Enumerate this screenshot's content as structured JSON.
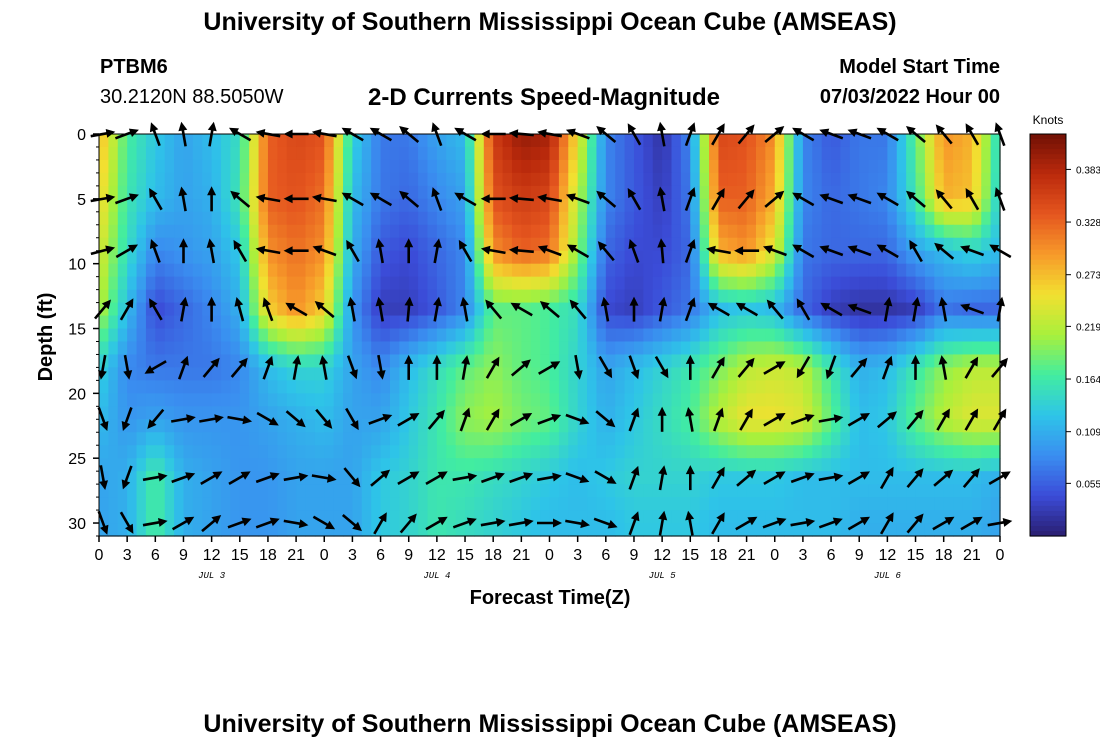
{
  "header": {
    "title": "University of Southern Mississippi Ocean Cube (AMSEAS)",
    "station_id": "PTBM6",
    "station_coords": "30.2120N  88.5050W",
    "subtitle": "2-D Currents Speed-Magnitude",
    "model_start_label": "Model Start Time",
    "model_start_value": "07/03/2022 Hour 00"
  },
  "footer": {
    "title": "University of Southern Mississippi Ocean Cube (AMSEAS)"
  },
  "chart_data": {
    "type": "heatmap",
    "title": "2-D Currents Speed-Magnitude",
    "xlabel": "Forecast Time(Z)",
    "ylabel": "Depth (ft)",
    "x_tick_labels": [
      "0",
      "3",
      "6",
      "9",
      "12",
      "15",
      "18",
      "21",
      "0",
      "3",
      "6",
      "9",
      "12",
      "15",
      "18",
      "21",
      "0",
      "3",
      "6",
      "9",
      "12",
      "15",
      "18",
      "21",
      "0",
      "3",
      "6",
      "9",
      "12",
      "15",
      "18",
      "21",
      "0"
    ],
    "x_hours_range": [
      0,
      96
    ],
    "date_labels": [
      {
        "label": "JUL 3",
        "hour": 12
      },
      {
        "label": "JUL 4",
        "hour": 36
      },
      {
        "label": "JUL 5",
        "hour": 60
      },
      {
        "label": "JUL 6",
        "hour": 84
      }
    ],
    "y_ticks": [
      0,
      5,
      10,
      15,
      20,
      25,
      30
    ],
    "ylim": [
      0,
      31
    ],
    "y_inverted": true,
    "colorbar": {
      "title": "Knots",
      "ticks": [
        0.383,
        0.328,
        0.273,
        0.219,
        0.164,
        0.109,
        0.055
      ],
      "range": [
        0.0,
        0.42
      ],
      "colors": [
        "#2a1e70",
        "#3b4cd8",
        "#3a8ef0",
        "#2ec4e8",
        "#42eda0",
        "#a8f03c",
        "#f2e030",
        "#f79a2a",
        "#e5561f",
        "#bb2a0c",
        "#701005"
      ]
    },
    "depth_levels_ft": [
      0,
      5,
      9,
      13.5,
      18,
      22,
      26.5,
      30
    ],
    "speed_knots": {
      "hours": [
        0,
        3,
        6,
        9,
        12,
        15,
        18,
        21,
        24,
        27,
        30,
        33,
        36,
        39,
        42,
        45,
        48,
        51,
        54,
        57,
        60,
        63,
        66,
        69,
        72,
        75,
        78,
        81,
        84,
        87,
        90,
        93,
        96
      ],
      "d0": [
        0.28,
        0.17,
        0.13,
        0.1,
        0.12,
        0.15,
        0.33,
        0.35,
        0.34,
        0.14,
        0.07,
        0.07,
        0.1,
        0.12,
        0.36,
        0.4,
        0.39,
        0.25,
        0.08,
        0.05,
        0.02,
        0.08,
        0.35,
        0.34,
        0.3,
        0.08,
        0.05,
        0.07,
        0.07,
        0.18,
        0.3,
        0.28,
        0.14
      ],
      "d5": [
        0.26,
        0.16,
        0.12,
        0.1,
        0.11,
        0.16,
        0.33,
        0.34,
        0.32,
        0.12,
        0.07,
        0.06,
        0.08,
        0.1,
        0.34,
        0.36,
        0.35,
        0.22,
        0.08,
        0.05,
        0.03,
        0.07,
        0.33,
        0.33,
        0.28,
        0.08,
        0.06,
        0.07,
        0.08,
        0.16,
        0.28,
        0.27,
        0.13
      ],
      "d9": [
        0.24,
        0.15,
        0.08,
        0.09,
        0.1,
        0.13,
        0.3,
        0.32,
        0.3,
        0.11,
        0.05,
        0.04,
        0.06,
        0.08,
        0.3,
        0.33,
        0.32,
        0.2,
        0.06,
        0.04,
        0.04,
        0.06,
        0.28,
        0.3,
        0.24,
        0.07,
        0.06,
        0.06,
        0.06,
        0.1,
        0.12,
        0.14,
        0.12
      ],
      "d13.5": [
        0.22,
        0.12,
        0.04,
        0.06,
        0.08,
        0.11,
        0.26,
        0.3,
        0.26,
        0.09,
        0.03,
        0.03,
        0.05,
        0.08,
        0.18,
        0.18,
        0.17,
        0.15,
        0.04,
        0.03,
        0.05,
        0.07,
        0.12,
        0.13,
        0.12,
        0.06,
        0.03,
        0.02,
        0.02,
        0.03,
        0.07,
        0.06,
        0.06
      ],
      "d18": [
        0.14,
        0.08,
        0.07,
        0.07,
        0.07,
        0.08,
        0.12,
        0.14,
        0.14,
        0.1,
        0.08,
        0.12,
        0.15,
        0.18,
        0.2,
        0.18,
        0.17,
        0.14,
        0.1,
        0.12,
        0.14,
        0.16,
        0.19,
        0.22,
        0.23,
        0.22,
        0.16,
        0.11,
        0.12,
        0.16,
        0.2,
        0.22,
        0.22
      ],
      "d22": [
        0.12,
        0.09,
        0.1,
        0.09,
        0.09,
        0.09,
        0.1,
        0.11,
        0.12,
        0.1,
        0.1,
        0.13,
        0.16,
        0.2,
        0.21,
        0.19,
        0.18,
        0.14,
        0.11,
        0.13,
        0.15,
        0.17,
        0.22,
        0.25,
        0.25,
        0.24,
        0.18,
        0.12,
        0.13,
        0.18,
        0.22,
        0.24,
        0.24
      ],
      "d26.5": [
        0.1,
        0.11,
        0.17,
        0.11,
        0.1,
        0.09,
        0.09,
        0.1,
        0.1,
        0.1,
        0.13,
        0.14,
        0.16,
        0.16,
        0.15,
        0.14,
        0.13,
        0.12,
        0.13,
        0.14,
        0.14,
        0.14,
        0.13,
        0.13,
        0.13,
        0.12,
        0.12,
        0.12,
        0.12,
        0.12,
        0.12,
        0.12,
        0.11
      ],
      "d30": [
        0.1,
        0.11,
        0.17,
        0.11,
        0.1,
        0.09,
        0.09,
        0.1,
        0.1,
        0.1,
        0.13,
        0.14,
        0.16,
        0.15,
        0.14,
        0.13,
        0.12,
        0.12,
        0.12,
        0.13,
        0.13,
        0.13,
        0.12,
        0.12,
        0.12,
        0.12,
        0.12,
        0.11,
        0.11,
        0.11,
        0.11,
        0.11,
        0.1
      ]
    },
    "arrow_direction_deg": {
      "d0": [
        80,
        70,
        340,
        350,
        10,
        300,
        280,
        270,
        280,
        300,
        300,
        310,
        340,
        300,
        270,
        275,
        280,
        290,
        310,
        330,
        350,
        20,
        30,
        40,
        50,
        300,
        290,
        290,
        300,
        310,
        320,
        330,
        340
      ],
      "d5": [
        80,
        70,
        330,
        350,
        0,
        310,
        280,
        270,
        280,
        300,
        300,
        310,
        340,
        300,
        270,
        275,
        280,
        290,
        310,
        330,
        350,
        20,
        30,
        40,
        50,
        300,
        290,
        290,
        300,
        310,
        320,
        330,
        340
      ],
      "d9": [
        75,
        60,
        340,
        0,
        350,
        330,
        280,
        270,
        290,
        330,
        350,
        0,
        10,
        330,
        280,
        275,
        290,
        300,
        320,
        340,
        355,
        20,
        280,
        270,
        290,
        300,
        290,
        290,
        300,
        330,
        310,
        290,
        300
      ],
      "d13.5": [
        40,
        30,
        330,
        10,
        0,
        345,
        340,
        300,
        310,
        350,
        350,
        5,
        10,
        350,
        320,
        300,
        310,
        320,
        350,
        0,
        10,
        20,
        300,
        300,
        320,
        330,
        300,
        290,
        10,
        10,
        350,
        290,
        10
      ],
      "d18": [
        190,
        170,
        240,
        20,
        40,
        40,
        20,
        10,
        350,
        160,
        170,
        0,
        0,
        10,
        30,
        50,
        60,
        170,
        150,
        160,
        150,
        0,
        30,
        40,
        60,
        210,
        200,
        40,
        20,
        0,
        350,
        30,
        40
      ],
      "d22": [
        160,
        200,
        220,
        80,
        80,
        100,
        120,
        130,
        140,
        150,
        70,
        60,
        40,
        20,
        30,
        60,
        70,
        110,
        130,
        20,
        0,
        350,
        20,
        30,
        60,
        70,
        80,
        60,
        50,
        40,
        30,
        30,
        30
      ],
      "d26.5": [
        170,
        200,
        80,
        70,
        60,
        60,
        70,
        80,
        100,
        140,
        50,
        60,
        60,
        80,
        70,
        70,
        80,
        110,
        120,
        20,
        10,
        0,
        30,
        50,
        60,
        70,
        80,
        60,
        30,
        40,
        50,
        40,
        60
      ],
      "d30": [
        160,
        150,
        80,
        60,
        50,
        70,
        70,
        100,
        120,
        130,
        30,
        40,
        60,
        70,
        80,
        80,
        90,
        100,
        110,
        20,
        10,
        350,
        30,
        60,
        70,
        80,
        70,
        60,
        30,
        40,
        60,
        60,
        80
      ]
    }
  }
}
